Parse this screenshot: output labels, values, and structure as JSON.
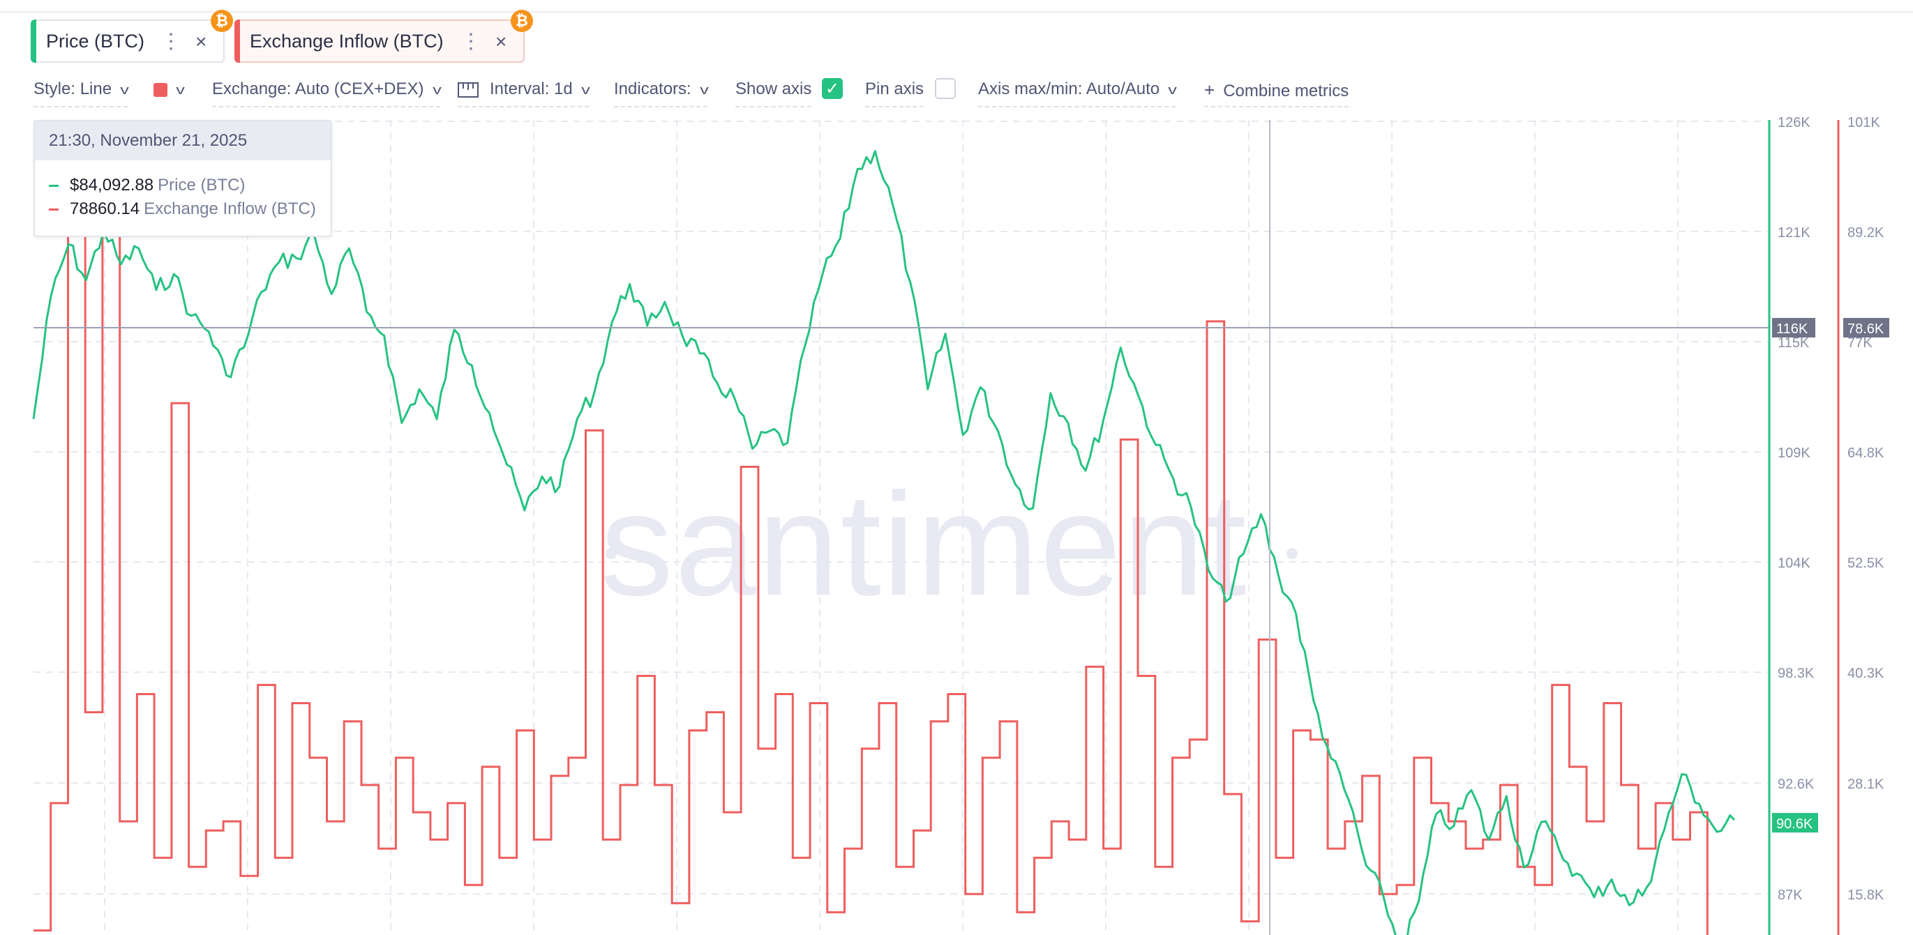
{
  "metrics": [
    {
      "label": "Price (BTC)",
      "color": "#26c281",
      "badge": "₿"
    },
    {
      "label": "Exchange Inflow (BTC)",
      "color": "#ee5e5e",
      "badge": "₿"
    }
  ],
  "toolbar": {
    "style": "Style: Line",
    "exchange": "Exchange: Auto (CEX+DEX)",
    "interval": "Interval: 1d",
    "indicators": "Indicators:",
    "show_axis": "Show axis",
    "show_axis_checked": true,
    "pin_axis": "Pin axis",
    "pin_axis_checked": false,
    "axis_maxmin": "Axis max/min: Auto/Auto",
    "combine": "Combine metrics",
    "plus": "+",
    "check": "✓",
    "dots": "⋮",
    "close": "×",
    "chevron": "v"
  },
  "tooltip": {
    "date": "21:30, November 21, 2025",
    "rows": [
      {
        "value": "$84,092.88",
        "name": "Price (BTC)",
        "color": "#26c281"
      },
      {
        "value": "78860.14",
        "name": "Exchange Inflow (BTC)",
        "color": "#ee5e5e"
      }
    ]
  },
  "watermark": "santiment",
  "chart_data": {
    "type": "line",
    "price_axis": {
      "ticks": [
        "126K",
        "121K",
        "115K",
        "109K",
        "104K",
        "98.3K",
        "92.6K",
        "87K"
      ],
      "cursor_label": "116K",
      "last_label": "90.6K",
      "range": [
        85000,
        126000
      ]
    },
    "inflow_axis": {
      "ticks": [
        "101K",
        "89.2K",
        "77K",
        "64.8K",
        "52.5K",
        "40.3K",
        "28.1K",
        "15.8K"
      ],
      "cursor_label": "78.6K",
      "range": [
        11500,
        101000
      ]
    },
    "grid": true,
    "series": [
      {
        "name": "Price (BTC)",
        "color": "#26c281",
        "values": [
          111000,
          117200,
          119800,
          118000,
          120500,
          118800,
          119600,
          117500,
          118300,
          116200,
          115400,
          113200,
          114600,
          117400,
          118900,
          119100,
          120300,
          117300,
          119600,
          116400,
          115200,
          110800,
          112500,
          111000,
          115500,
          113700,
          111300,
          108700,
          106400,
          108100,
          107600,
          111000,
          112400,
          115900,
          117800,
          115700,
          116900,
          115200,
          114300,
          112800,
          112000,
          109500,
          110400,
          109800,
          114700,
          118300,
          120100,
          123600,
          124500,
          121800,
          117900,
          112500,
          115300,
          110200,
          112600,
          110400,
          107700,
          106500,
          112300,
          110800,
          108400,
          110900,
          114600,
          112200,
          109700,
          108000,
          106600,
          103400,
          101800,
          104200,
          106200,
          103100,
          101200,
          96800,
          93900,
          91800,
          88500,
          86900,
          84100,
          86700,
          91100,
          90500,
          92300,
          89800,
          92000,
          88400,
          90700,
          89300,
          88100,
          86900,
          87800,
          86500,
          87400,
          90300,
          93100,
          91600,
          90200,
          90800
        ]
      },
      {
        "name": "Exchange Inflow (BTC)",
        "color": "#ee5e5e",
        "values": [
          12000,
          26000,
          98000,
          36000,
          96000,
          24000,
          38000,
          20000,
          70000,
          19000,
          23000,
          24000,
          18000,
          39000,
          20000,
          37000,
          31000,
          24000,
          35000,
          28000,
          21000,
          31000,
          25000,
          22000,
          26000,
          17000,
          30000,
          20000,
          34000,
          22000,
          29000,
          31000,
          67000,
          22000,
          28000,
          40000,
          28000,
          15000,
          34000,
          36000,
          25000,
          63000,
          32000,
          38000,
          20000,
          37000,
          14000,
          21000,
          32000,
          37000,
          19000,
          23000,
          35000,
          38000,
          16000,
          31000,
          35000,
          14000,
          20000,
          24000,
          22000,
          41000,
          21000,
          66000,
          40000,
          19000,
          31000,
          33000,
          79000,
          27000,
          13000,
          44000,
          20000,
          34000,
          33000,
          21000,
          24000,
          29000,
          16000,
          17000,
          31000,
          26000,
          24000,
          21000,
          22000,
          28000,
          19000,
          17000,
          39000,
          30000,
          24000,
          37000,
          28000,
          21000,
          26000,
          22000,
          25000,
          11000
        ]
      }
    ]
  }
}
